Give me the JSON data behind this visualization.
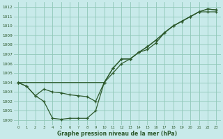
{
  "background_color": "#c8eaea",
  "grid_color": "#90c8b8",
  "line_color": "#2d5a2d",
  "xlabel": "Graphe pression niveau de la mer (hPa)",
  "xlim": [
    -0.5,
    23.5
  ],
  "ylim": [
    999.5,
    1012.5
  ],
  "yticks": [
    1000,
    1001,
    1002,
    1003,
    1004,
    1005,
    1006,
    1007,
    1008,
    1009,
    1010,
    1011,
    1012
  ],
  "xticks": [
    0,
    1,
    2,
    3,
    4,
    5,
    6,
    7,
    8,
    9,
    10,
    11,
    12,
    13,
    14,
    15,
    16,
    17,
    18,
    19,
    20,
    21,
    22,
    23
  ],
  "line_straight_x": [
    0,
    10,
    11,
    12,
    13,
    14,
    15,
    16,
    17,
    18,
    19,
    20,
    21,
    22,
    23
  ],
  "line_straight_y": [
    1004.0,
    1004.0,
    1005.5,
    1006.5,
    1006.5,
    1007.2,
    1007.8,
    1008.5,
    1009.3,
    1010.0,
    1010.5,
    1011.0,
    1011.5,
    1011.8,
    1011.7
  ],
  "line_mid_x": [
    0,
    1,
    2,
    3,
    4,
    5,
    6,
    7,
    8,
    9,
    10,
    11,
    12,
    13,
    14,
    15,
    16,
    17,
    18,
    19,
    20,
    21,
    22,
    23
  ],
  "line_mid_y": [
    1004.0,
    1003.6,
    1002.6,
    1003.3,
    1003.0,
    1002.9,
    1002.7,
    1002.6,
    1002.5,
    1002.0,
    1004.0,
    1005.0,
    1006.0,
    1006.5,
    1007.2,
    1007.5,
    1008.2,
    1009.3,
    1010.0,
    1010.5,
    1011.0,
    1011.5,
    1011.5,
    1011.5
  ],
  "line_low_x": [
    0,
    1,
    2,
    3,
    4,
    5,
    6,
    7,
    8,
    9,
    10,
    11,
    12,
    13,
    14,
    15,
    16,
    17,
    18,
    19,
    20,
    21,
    22,
    23
  ],
  "line_low_y": [
    1004.0,
    1003.6,
    1002.6,
    1002.0,
    1000.2,
    1000.1,
    1000.2,
    1000.2,
    1000.2,
    1001.0,
    1004.0,
    1005.5,
    1006.5,
    1006.5,
    1007.2,
    1007.8,
    1008.5,
    1009.3,
    1010.0,
    1010.5,
    1011.0,
    1011.5,
    1011.8,
    1011.7
  ]
}
